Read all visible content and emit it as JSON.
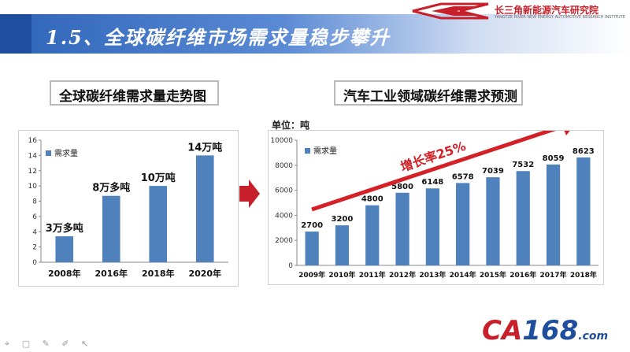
{
  "page": {
    "title": "1.5、全球碳纤维市场需求量稳步攀升",
    "brand_name": "长三角新能源汽车研究院",
    "brand_sub": "YANGTZE RIVER NEW ENERGY AUTOMOTIVE RESEARCH INSTITUTE",
    "watermark_ca": "CA",
    "watermark_num": "168",
    "watermark_suffix": ".com",
    "tools": "⌖ ▢ ✎ ✐ ↖"
  },
  "colors": {
    "bar": "#4f81bd",
    "accent_red": "#c8202a",
    "title_blue": "#2e64b8"
  },
  "chart_data": [
    {
      "type": "bar",
      "title": "全球碳纤维需求量走势图",
      "categories": [
        "2008年",
        "2016年",
        "2018年",
        "2020年"
      ],
      "series": [
        {
          "name": "需求量",
          "values": [
            3.4,
            8.7,
            10,
            14
          ]
        }
      ],
      "data_labels": [
        "3万多吨",
        "8万多吨",
        "10万吨",
        "14万吨"
      ],
      "yticks": [
        0,
        2,
        4,
        6,
        8,
        10,
        12,
        14,
        16
      ],
      "ylim": [
        0,
        16
      ],
      "legend": "top-left",
      "grid": false
    },
    {
      "type": "bar",
      "title": "汽车工业领域碳纤维需求预测",
      "unit": "单位：吨",
      "categories": [
        "2009年",
        "2010年",
        "2011年",
        "2012年",
        "2013年",
        "2014年",
        "2015年",
        "2016年",
        "2017年",
        "2018年"
      ],
      "series": [
        {
          "name": "需求量",
          "values": [
            2700,
            3200,
            4800,
            5800,
            6148,
            6578,
            7039,
            7532,
            8059,
            8623
          ]
        }
      ],
      "yticks": [
        0,
        2000,
        4000,
        6000,
        8000,
        10000
      ],
      "ylim": [
        0,
        10000
      ],
      "annotation": "增长率25%",
      "legend": "top-left",
      "grid": false
    }
  ]
}
